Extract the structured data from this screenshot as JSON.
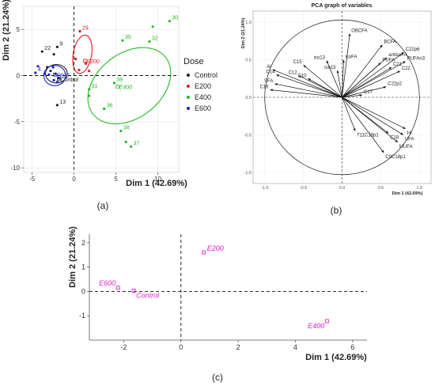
{
  "chart_data": [
    {
      "type": "scatter",
      "panel_label": "(a)",
      "title": "",
      "xlabel": "Dim 1 (42.69%)",
      "ylabel": "Dim 2 (21.24%)",
      "xlim": [
        -6,
        12.5
      ],
      "ylim": [
        -10.5,
        7.5
      ],
      "xticks": [
        "-5",
        "0",
        "5",
        "10"
      ],
      "yticks": [
        "-10",
        "-5",
        "0",
        "5"
      ],
      "yticks_values": [
        -10,
        -5,
        0,
        5
      ],
      "xticks_values": [
        -5,
        0,
        5,
        10
      ],
      "grid": true,
      "legend_title": "Dose",
      "legend_position": "right",
      "series": [
        {
          "name": "Control",
          "color": "#222222",
          "points": [
            {
              "x": -3.8,
              "y": 2.6,
              "label": "22"
            },
            {
              "x": -2.0,
              "y": 3.1,
              "label": "9"
            },
            {
              "x": -2.4,
              "y": 2.3,
              "label": ""
            },
            {
              "x": -3.2,
              "y": 0.9,
              "label": ""
            },
            {
              "x": -2.8,
              "y": 0.5,
              "label": ""
            },
            {
              "x": -2.2,
              "y": 0.2,
              "label": ""
            },
            {
              "x": -1.8,
              "y": -0.3,
              "label": ""
            },
            {
              "x": -2.0,
              "y": -3.2,
              "label": "13"
            }
          ],
          "centroid": {
            "x": -1.8,
            "y": -0.4,
            "label": "Control"
          }
        },
        {
          "name": "E200",
          "color": "#e8191c",
          "points": [
            {
              "x": 0.7,
              "y": 4.8,
              "label": "29"
            },
            {
              "x": 0.2,
              "y": 1.8,
              "label": ""
            },
            {
              "x": 1.4,
              "y": 1.3,
              "label": ""
            },
            {
              "x": 0.6,
              "y": 0.6,
              "label": ""
            },
            {
              "x": 1.8,
              "y": 0.5,
              "label": ""
            }
          ],
          "centroid": {
            "x": 1.3,
            "y": 1.6,
            "label": "E200"
          }
        },
        {
          "name": "E400",
          "color": "#22bb22",
          "points": [
            {
              "x": 11.4,
              "y": 5.9,
              "label": "30"
            },
            {
              "x": 9.4,
              "y": 5.3,
              "label": ""
            },
            {
              "x": 5.8,
              "y": 3.8,
              "label": "35"
            },
            {
              "x": 9.0,
              "y": 3.7,
              "label": "32"
            },
            {
              "x": 4.8,
              "y": -0.8,
              "label": "39"
            },
            {
              "x": 1.8,
              "y": -1.5,
              "label": "31"
            },
            {
              "x": 1.8,
              "y": -2.2,
              "label": ""
            },
            {
              "x": 3.6,
              "y": -3.6,
              "label": "36"
            },
            {
              "x": 5.6,
              "y": -6.0,
              "label": "38"
            },
            {
              "x": 6.2,
              "y": -7.2,
              "label": ""
            },
            {
              "x": 6.8,
              "y": -7.7,
              "label": "37"
            }
          ],
          "centroid": {
            "x": 5.2,
            "y": -1.2,
            "label": "E400"
          }
        },
        {
          "name": "E600",
          "color": "#1a22cc",
          "points": [
            {
              "x": -4.6,
              "y": 0.3,
              "label": "4"
            },
            {
              "x": -4.3,
              "y": 1.0,
              "label": ""
            },
            {
              "x": -3.5,
              "y": 0.2,
              "label": ""
            },
            {
              "x": -2.5,
              "y": 0.9,
              "label": ""
            },
            {
              "x": -3.0,
              "y": 0.1,
              "label": ""
            },
            {
              "x": -2.4,
              "y": -0.5,
              "label": "11"
            },
            {
              "x": -2.0,
              "y": -0.7,
              "label": ""
            }
          ],
          "centroid": {
            "x": -2.3,
            "y": 0.1,
            "label": "E600"
          }
        }
      ],
      "ellipses": [
        {
          "series": "Control",
          "cx": -2.1,
          "cy": 0.2,
          "rx": 1.3,
          "ry": 1.0,
          "angle": 0
        },
        {
          "series": "E200",
          "cx": 1.0,
          "cy": 2.3,
          "rx": 1.1,
          "ry": 2.1,
          "angle": -10
        },
        {
          "series": "E400",
          "cx": 6.6,
          "cy": -1.1,
          "rx": 5.5,
          "ry": 3.5,
          "angle": 38
        },
        {
          "series": "E600",
          "cx": -2.3,
          "cy": 0.0,
          "rx": 1.3,
          "ry": 1.1,
          "angle": 0
        }
      ]
    },
    {
      "type": "correlation-circle",
      "panel_label": "(b)",
      "title": "PCA graph of variables",
      "xlabel": "Dim 1 (42.69%)",
      "ylabel": "Dim 2 (21.24%)",
      "xlim": [
        -1.15,
        1.15
      ],
      "ylim": [
        -1.15,
        1.15
      ],
      "xticks": [
        "-1.0",
        "-0.5",
        "0.0",
        "0.5",
        "1.0"
      ],
      "yticks": [
        "-1.0",
        "-0.5",
        "0.0",
        "0.5",
        "1.0"
      ],
      "tick_values": [
        -1,
        -0.5,
        0,
        0.5,
        1
      ],
      "vectors": [
        {
          "label": "OBCFA",
          "x": 0.1,
          "y": 0.85
        },
        {
          "label": "BCFA",
          "x": 0.52,
          "y": 0.7
        },
        {
          "label": "antisoFA",
          "x": 0.58,
          "y": 0.53
        },
        {
          "label": "C22p6",
          "x": 0.8,
          "y": 0.6
        },
        {
          "label": "PUFAn3",
          "x": 0.82,
          "y": 0.48
        },
        {
          "label": "PUFA",
          "x": 0.5,
          "y": 0.46
        },
        {
          "label": "C21",
          "x": 0.64,
          "y": 0.4
        },
        {
          "label": "C22",
          "x": 0.75,
          "y": 0.35
        },
        {
          "label": "C22p2",
          "x": 0.57,
          "y": 0.14
        },
        {
          "label": "C17",
          "x": 0.26,
          "y": 0.03
        },
        {
          "label": "isoFA",
          "x": 0.02,
          "y": 0.5
        },
        {
          "label": "iso13",
          "x": -0.2,
          "y": 0.49
        },
        {
          "label": "iso15",
          "x": -0.06,
          "y": 0.36
        },
        {
          "label": "C15",
          "x": -0.5,
          "y": 0.43
        },
        {
          "label": "Al",
          "x": -0.9,
          "y": 0.37
        },
        {
          "label": "C14",
          "x": -0.85,
          "y": 0.3
        },
        {
          "label": "C12",
          "x": -0.56,
          "y": 0.29
        },
        {
          "label": "C10",
          "x": -0.44,
          "y": 0.25
        },
        {
          "label": "SFA",
          "x": -0.87,
          "y": 0.18
        },
        {
          "label": "C16",
          "x": -0.93,
          "y": 0.1
        },
        {
          "label": "T11C18p1",
          "x": 0.17,
          "y": -0.45
        },
        {
          "label": "C18",
          "x": 0.6,
          "y": -0.48
        },
        {
          "label": "UFA",
          "x": 0.79,
          "y": -0.5
        },
        {
          "label": "HI",
          "x": 0.82,
          "y": -0.42
        },
        {
          "label": "MUFA",
          "x": 0.72,
          "y": -0.6
        },
        {
          "label": "C9C18p1",
          "x": 0.54,
          "y": -0.74
        }
      ]
    },
    {
      "type": "scatter",
      "panel_label": "(c)",
      "title": "",
      "xlabel": "Dim 1 (42.69%)",
      "ylabel": "Dim 2 (21.24%)",
      "xlim": [
        -3.2,
        6.5
      ],
      "ylim": [
        -2.0,
        2.35
      ],
      "xticks": [
        "-2",
        "0",
        "2",
        "4",
        "6"
      ],
      "xticks_values": [
        -2,
        0,
        2,
        4,
        6
      ],
      "yticks": [
        "-1",
        "0",
        "1",
        "2"
      ],
      "yticks_values": [
        -1,
        0,
        1,
        2
      ],
      "color": "#dd22cc",
      "points": [
        {
          "label": "E200",
          "x": 0.8,
          "y": 1.6
        },
        {
          "label": "E600",
          "x": -2.2,
          "y": 0.15
        },
        {
          "label": "Control",
          "x": -1.65,
          "y": 0.03
        },
        {
          "label": "E400",
          "x": 5.1,
          "y": -1.22
        }
      ]
    }
  ]
}
